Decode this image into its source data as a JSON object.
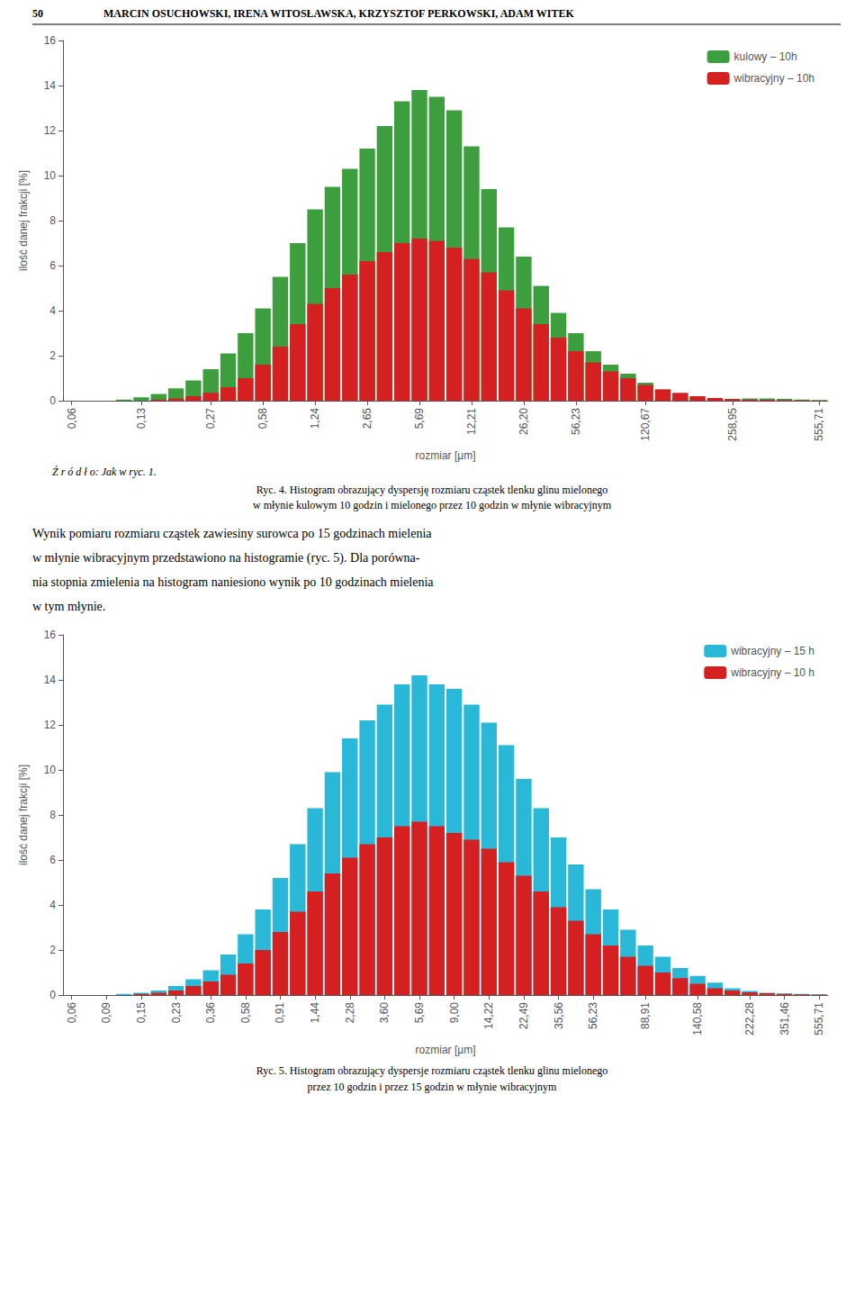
{
  "chart_data": [
    {
      "type": "bar",
      "annotations": [
        "50",
        "MARCIN OSUCHOWSKI, IRENA WITOSŁAWSKA, KRZYSZTOF PERKOWSKI, ADAM WITEK",
        "Ź r ó d ł o: Jak w ryc. 1.",
        "Ryc. 4. Histogram obrazujący dyspersję rozmiaru cząstek tlenku glinu mielonego",
        "w młynie kulowym 10 godzin i mielonego przez 10 godzin w młynie wibracyjnym"
      ],
      "xlabel": "rozmiar [μm]",
      "ylabel": "ilość danej frakcji [%]",
      "categories": [
        "0,06",
        null,
        null,
        null,
        "0,13",
        null,
        null,
        null,
        "0,27",
        null,
        null,
        "0,58",
        null,
        null,
        "1,24",
        null,
        null,
        "2,65",
        null,
        null,
        "5,69",
        null,
        null,
        "12,21",
        null,
        null,
        "26,20",
        null,
        null,
        "56,23",
        null,
        null,
        null,
        "120,67",
        null,
        null,
        null,
        null,
        "258,95",
        null,
        null,
        null,
        null,
        "555,71"
      ],
      "series": [
        {
          "name": "kulowy – 10h",
          "color": "#3d9e3d",
          "values": [
            0.0,
            0.0,
            0.0,
            0.05,
            0.15,
            0.3,
            0.55,
            0.9,
            1.4,
            2.1,
            3.0,
            4.1,
            5.5,
            7.0,
            8.5,
            9.5,
            10.3,
            11.2,
            12.2,
            13.3,
            13.8,
            13.5,
            12.9,
            11.3,
            9.4,
            7.7,
            6.4,
            5.1,
            3.9,
            3.0,
            2.2,
            1.6,
            1.2,
            0.8,
            0.5,
            0.3,
            0.15,
            0.08,
            0.05,
            0.1,
            0.1,
            0.08,
            0.05,
            0.03
          ]
        },
        {
          "name": "wibracyjny – 10h",
          "color": "#d42020",
          "values": [
            0.0,
            0.0,
            0.0,
            0.0,
            0.0,
            0.05,
            0.1,
            0.2,
            0.35,
            0.6,
            1.0,
            1.6,
            2.4,
            3.4,
            4.3,
            5.0,
            5.6,
            6.2,
            6.6,
            7.0,
            7.2,
            7.1,
            6.8,
            6.3,
            5.7,
            4.9,
            4.1,
            3.4,
            2.8,
            2.2,
            1.7,
            1.3,
            1.0,
            0.7,
            0.5,
            0.35,
            0.2,
            0.12,
            0.08,
            0.05,
            0.04,
            0.03,
            0.02,
            0.01
          ]
        }
      ],
      "ylim": [
        0,
        16
      ],
      "yticks": [
        0,
        2,
        4,
        6,
        8,
        10,
        12,
        14,
        16
      ],
      "grid": false,
      "legend": "upper right"
    },
    {
      "type": "bar",
      "annotations": [
        "Wynik pomiaru rozmiaru cząstek zawiesiny surowca po 15 godzinach mielenia",
        "w młynie wibracyjnym przedstawiono na histogramie (ryc. 5). Dla porówna-",
        "nia stopnia zmielenia na histogram naniesiono wynik po 10 godzinach mielenia",
        "w tym młynie.",
        "Ryc. 5. Histogram obrazujący dyspersje rozmiaru cząstek tlenku glinu mielonego",
        "przez 10 godzin i przez 15 godzin w młynie wibracyjnym"
      ],
      "xlabel": "rozmiar [μm]",
      "ylabel": "ilość danej frakcji [%]",
      "categories": [
        "0,06",
        null,
        "0,09",
        null,
        "0,15",
        null,
        "0,23",
        null,
        "0,36",
        null,
        "0,58",
        null,
        "0,91",
        null,
        "1,44",
        null,
        "2,28",
        null,
        "3,60",
        null,
        "5,69",
        null,
        "9,00",
        null,
        "14,22",
        null,
        "22,49",
        null,
        "35,56",
        null,
        "56,23",
        null,
        null,
        "88,91",
        null,
        null,
        "140,58",
        null,
        null,
        "222,28",
        null,
        "351,46",
        null,
        "555,71"
      ],
      "series": [
        {
          "name": "wibracyjny – 15 h",
          "color": "#29b8d8",
          "values": [
            0.0,
            0.0,
            0.0,
            0.05,
            0.1,
            0.2,
            0.4,
            0.7,
            1.1,
            1.8,
            2.7,
            3.8,
            5.2,
            6.7,
            8.3,
            9.9,
            11.4,
            12.2,
            12.9,
            13.8,
            14.2,
            13.8,
            13.6,
            12.9,
            12.1,
            11.1,
            9.6,
            8.3,
            7.0,
            5.8,
            4.7,
            3.8,
            2.9,
            2.2,
            1.7,
            1.2,
            0.85,
            0.55,
            0.3,
            0.18,
            0.1,
            0.07,
            0.05,
            0.03
          ]
        },
        {
          "name": "wibracyjny – 10 h",
          "color": "#d42020",
          "values": [
            0.0,
            0.0,
            0.0,
            0.0,
            0.05,
            0.1,
            0.2,
            0.4,
            0.6,
            0.9,
            1.4,
            2.0,
            2.8,
            3.7,
            4.6,
            5.4,
            6.1,
            6.7,
            7.0,
            7.5,
            7.7,
            7.5,
            7.2,
            6.9,
            6.5,
            5.9,
            5.3,
            4.6,
            3.9,
            3.3,
            2.7,
            2.2,
            1.7,
            1.3,
            1.0,
            0.75,
            0.5,
            0.3,
            0.2,
            0.12,
            0.08,
            0.05,
            0.03,
            0.02
          ]
        }
      ],
      "ylim": [
        0,
        16
      ],
      "yticks": [
        0,
        2,
        4,
        6,
        8,
        10,
        12,
        14,
        16
      ],
      "grid": false,
      "legend": "upper right"
    }
  ]
}
